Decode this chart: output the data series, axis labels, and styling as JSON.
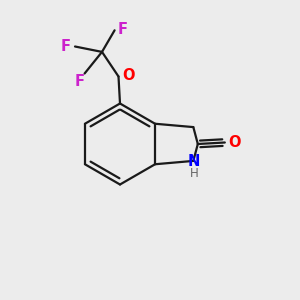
{
  "background_color": "#ececec",
  "bond_color": "#1a1a1a",
  "N_color": "#0000ff",
  "O_color": "#ff0000",
  "F_color": "#cc22cc",
  "H_color": "#666666",
  "figsize": [
    3.0,
    3.0
  ],
  "dpi": 100,
  "lw": 1.6,
  "xlim": [
    0,
    10
  ],
  "ylim": [
    0,
    10
  ]
}
